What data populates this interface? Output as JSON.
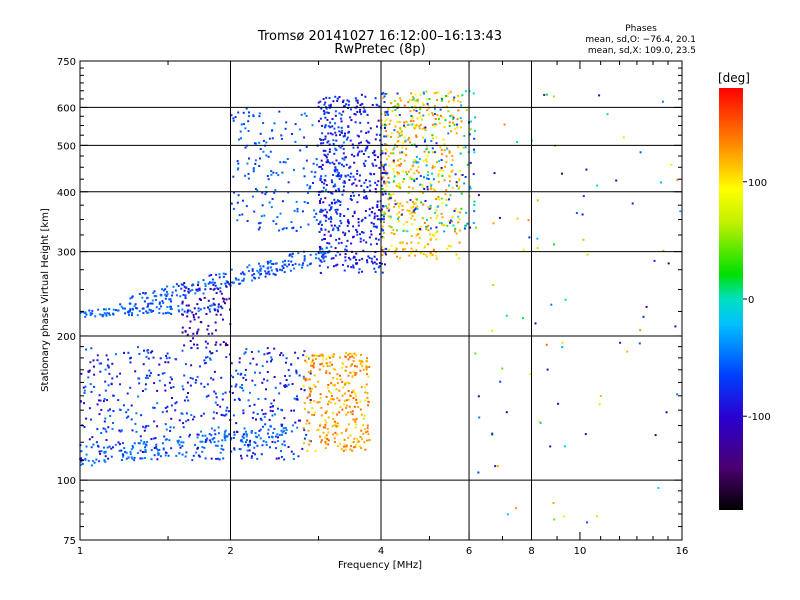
{
  "chart_data": {
    "type": "scatter",
    "title": "Tromsø 20141027 16:12:00–16:13:43",
    "subtitle": "RwPretec (8p)",
    "xlabel": "Frequency [MHz]",
    "ylabel": "Stationary phase Virtual Height [km]",
    "x_scale": "log",
    "y_scale": "log",
    "xlim": [
      1,
      16
    ],
    "ylim": [
      75,
      750
    ],
    "x_ticks": [
      1,
      2,
      4,
      6,
      8,
      10,
      16
    ],
    "x_tick_labels": [
      "1",
      "2",
      "4",
      "6",
      "8",
      "10",
      "16"
    ],
    "x_gridlines": [
      2,
      4,
      6,
      8
    ],
    "y_ticks": [
      75,
      100,
      200,
      300,
      400,
      500,
      600,
      750
    ],
    "y_tick_labels": [
      "75",
      "100",
      "200",
      "300",
      "400",
      "500",
      "600",
      "750"
    ],
    "y_gridlines": [
      100,
      200,
      300,
      400,
      500,
      600
    ],
    "grid": true,
    "phase_stats": {
      "heading": "Phases",
      "o_line": "mean, sd,O: −76.4, 20.1",
      "x_line": "mean, sd,X: 109.0, 23.5"
    },
    "colorbar": {
      "unit": "[deg]",
      "range": [
        -180,
        180
      ],
      "ticks": [
        100,
        0,
        -100
      ],
      "tick_labels": [
        "100",
        "0",
        "-100"
      ],
      "colormap": "rainbow: black → purple → blue → cyan → green → yellow → orange → red"
    },
    "traces": [
      {
        "id": "o-E-layer",
        "freq": [
          1.0,
          2.6
        ],
        "height": [
          112,
          125
        ],
        "phase": [
          -60,
          -40
        ],
        "n": 180,
        "spread": 0.05
      },
      {
        "id": "o-Es-patch",
        "freq": [
          1.0,
          2.9
        ],
        "height": [
          110,
          190
        ],
        "phase": [
          -110,
          -40
        ],
        "n": 520,
        "spread": 0.0
      },
      {
        "id": "x-E-patch",
        "freq": [
          2.8,
          3.8
        ],
        "height": [
          115,
          185
        ],
        "phase": [
          100,
          150
        ],
        "n": 320,
        "spread": 0.0
      },
      {
        "id": "o-F1-lower",
        "freq": [
          1.0,
          2.0
        ],
        "height": [
          222,
          230
        ],
        "phase": [
          -70,
          -40
        ],
        "n": 90,
        "spread": 0.02
      },
      {
        "id": "o-F1-ramp",
        "freq": [
          1.2,
          3.2
        ],
        "height": [
          230,
          300
        ],
        "phase": [
          -80,
          -40
        ],
        "n": 240,
        "spread": 0.04
      },
      {
        "id": "o-dip-patch",
        "freq": [
          1.6,
          2.0
        ],
        "height": [
          190,
          260
        ],
        "phase": [
          -130,
          -100
        ],
        "n": 90,
        "spread": 0.0
      },
      {
        "id": "o-F2-rise",
        "freq": [
          3.0,
          4.1
        ],
        "height": [
          270,
          640
        ],
        "phase": [
          -110,
          -60
        ],
        "n": 520,
        "spread": 0.0
      },
      {
        "id": "o-F2-upper",
        "freq": [
          2.0,
          3.4
        ],
        "height": [
          330,
          600
        ],
        "phase": [
          -80,
          -40
        ],
        "n": 220,
        "spread": 0.0
      },
      {
        "id": "x-F2-rise",
        "freq": [
          4.0,
          5.8
        ],
        "height": [
          290,
          650
        ],
        "phase": [
          90,
          140
        ],
        "n": 420,
        "spread": 0.0
      },
      {
        "id": "o-scatter-high",
        "freq": [
          4.0,
          6.2
        ],
        "height": [
          330,
          650
        ],
        "phase": [
          -100,
          60
        ],
        "n": 220,
        "spread": 0.0
      },
      {
        "id": "sparse-high-freq",
        "freq": [
          6.0,
          16.0
        ],
        "height": [
          80,
          650
        ],
        "phase": [
          -150,
          150
        ],
        "n": 90,
        "spread": 0.0
      }
    ]
  }
}
